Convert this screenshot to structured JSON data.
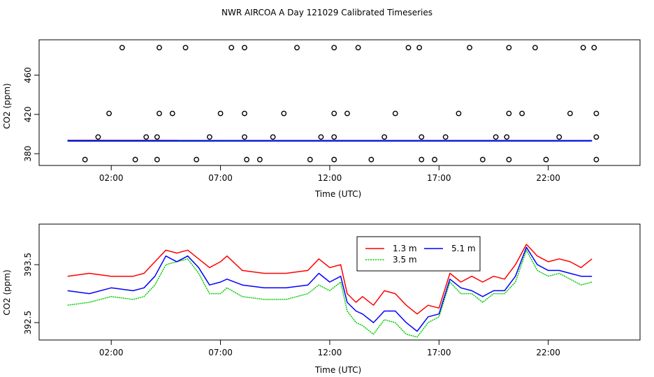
{
  "chart_data": [
    {
      "type": "scatter",
      "title": "NWR AIRCOA A  Day 121029  Calibrated Timeseries",
      "xlabel": "Time (UTC)",
      "ylabel": "CO2 (ppm)",
      "xlim": [
        -1.3,
        26.2
      ],
      "ylim": [
        368,
        496
      ],
      "xticks": [
        2,
        7,
        12,
        17,
        22
      ],
      "xtick_labels": [
        "02:00",
        "07:00",
        "12:00",
        "17:00",
        "22:00"
      ],
      "yticks": [
        380,
        420,
        460
      ],
      "ytick_labels": [
        "380",
        "420",
        "460"
      ],
      "points": [
        {
          "x": 0.8,
          "y": 374
        },
        {
          "x": 1.4,
          "y": 397
        },
        {
          "x": 1.9,
          "y": 421
        },
        {
          "x": 2.5,
          "y": 488
        },
        {
          "x": 3.1,
          "y": 374
        },
        {
          "x": 3.6,
          "y": 397
        },
        {
          "x": 4.1,
          "y": 397
        },
        {
          "x": 4.1,
          "y": 374
        },
        {
          "x": 4.2,
          "y": 421
        },
        {
          "x": 4.2,
          "y": 488
        },
        {
          "x": 4.8,
          "y": 421
        },
        {
          "x": 5.4,
          "y": 488
        },
        {
          "x": 5.9,
          "y": 374
        },
        {
          "x": 6.5,
          "y": 397
        },
        {
          "x": 7.0,
          "y": 421
        },
        {
          "x": 7.5,
          "y": 488
        },
        {
          "x": 8.1,
          "y": 488
        },
        {
          "x": 8.1,
          "y": 421
        },
        {
          "x": 8.1,
          "y": 397
        },
        {
          "x": 8.2,
          "y": 374
        },
        {
          "x": 8.8,
          "y": 374
        },
        {
          "x": 9.4,
          "y": 397
        },
        {
          "x": 9.9,
          "y": 421
        },
        {
          "x": 10.5,
          "y": 488
        },
        {
          "x": 11.1,
          "y": 374
        },
        {
          "x": 11.6,
          "y": 397
        },
        {
          "x": 12.2,
          "y": 397
        },
        {
          "x": 12.2,
          "y": 374
        },
        {
          "x": 12.2,
          "y": 421
        },
        {
          "x": 12.2,
          "y": 488
        },
        {
          "x": 12.8,
          "y": 421
        },
        {
          "x": 13.3,
          "y": 488
        },
        {
          "x": 13.9,
          "y": 374
        },
        {
          "x": 14.5,
          "y": 397
        },
        {
          "x": 15.0,
          "y": 421
        },
        {
          "x": 15.6,
          "y": 488
        },
        {
          "x": 16.1,
          "y": 488
        },
        {
          "x": 16.2,
          "y": 397
        },
        {
          "x": 16.2,
          "y": 374
        },
        {
          "x": 16.8,
          "y": 374
        },
        {
          "x": 17.3,
          "y": 397
        },
        {
          "x": 17.9,
          "y": 421
        },
        {
          "x": 18.4,
          "y": 488
        },
        {
          "x": 19.0,
          "y": 374
        },
        {
          "x": 19.6,
          "y": 397
        },
        {
          "x": 20.1,
          "y": 397
        },
        {
          "x": 20.2,
          "y": 374
        },
        {
          "x": 20.2,
          "y": 421
        },
        {
          "x": 20.2,
          "y": 488
        },
        {
          "x": 20.8,
          "y": 421
        },
        {
          "x": 21.4,
          "y": 488
        },
        {
          "x": 21.9,
          "y": 374
        },
        {
          "x": 22.5,
          "y": 397
        },
        {
          "x": 23.0,
          "y": 421
        },
        {
          "x": 23.6,
          "y": 488
        },
        {
          "x": 24.1,
          "y": 488
        },
        {
          "x": 24.2,
          "y": 421
        },
        {
          "x": 24.2,
          "y": 397
        },
        {
          "x": 24.2,
          "y": 374
        }
      ],
      "series": [
        {
          "name": "1.3 m",
          "color": "#ff0000",
          "x": [
            0,
            24
          ],
          "values": [
            393.4,
            393.3
          ]
        },
        {
          "name": "3.5 m",
          "color": "#00cc00",
          "x": [
            0,
            24
          ],
          "values": [
            392.9,
            393.0
          ]
        },
        {
          "name": "5.1 m",
          "color": "#0000ff",
          "x": [
            0,
            24
          ],
          "values": [
            393.2,
            393.2
          ]
        }
      ]
    },
    {
      "type": "line",
      "xlabel": "Time (UTC)",
      "ylabel": "CO2 (ppm)",
      "xlim": [
        -1.3,
        26.2
      ],
      "ylim": [
        392.2,
        394.2
      ],
      "xticks": [
        2,
        7,
        12,
        17,
        22
      ],
      "xtick_labels": [
        "02:00",
        "07:00",
        "12:00",
        "17:00",
        "22:00"
      ],
      "yticks": [
        392.5,
        393.5
      ],
      "ytick_labels": [
        "392.5",
        "393.5"
      ],
      "legend": {
        "position": "top-center",
        "entries": [
          "1.3 m",
          "5.1 m",
          "3.5 m"
        ]
      },
      "series": [
        {
          "name": "1.3 m",
          "color": "#ff0000",
          "x": [
            0,
            1,
            2,
            3,
            3.5,
            4,
            4.5,
            5,
            5.5,
            6,
            6.5,
            7,
            7.3,
            8,
            9,
            10,
            11,
            11.5,
            12,
            12.5,
            12.8,
            13.2,
            13.5,
            14,
            14.5,
            15,
            15.5,
            16,
            16.5,
            17,
            17.5,
            18,
            18.5,
            19,
            19.5,
            20,
            20.5,
            21,
            21.5,
            22,
            22.5,
            23,
            23.5,
            24
          ],
          "values": [
            393.3,
            393.35,
            393.3,
            393.3,
            393.35,
            393.55,
            393.75,
            393.7,
            393.75,
            393.6,
            393.45,
            393.55,
            393.65,
            393.4,
            393.35,
            393.35,
            393.4,
            393.6,
            393.45,
            393.5,
            393.0,
            392.85,
            392.95,
            392.8,
            393.05,
            393.0,
            392.8,
            392.65,
            392.8,
            392.75,
            393.35,
            393.2,
            393.3,
            393.2,
            393.3,
            393.25,
            393.5,
            393.85,
            393.65,
            393.55,
            393.6,
            393.55,
            393.45,
            393.6
          ]
        },
        {
          "name": "3.5 m",
          "color": "#00cc00",
          "x": [
            0,
            1,
            2,
            3,
            3.5,
            4,
            4.5,
            5,
            5.5,
            6,
            6.5,
            7,
            7.3,
            8,
            9,
            10,
            11,
            11.5,
            12,
            12.5,
            12.8,
            13.2,
            13.5,
            14,
            14.5,
            15,
            15.5,
            16,
            16.5,
            17,
            17.5,
            18,
            18.5,
            19,
            19.5,
            20,
            20.5,
            21,
            21.5,
            22,
            22.5,
            23,
            23.5,
            24
          ],
          "values": [
            392.8,
            392.85,
            392.95,
            392.9,
            392.95,
            393.15,
            393.5,
            393.55,
            393.6,
            393.35,
            393.0,
            393.0,
            393.1,
            392.95,
            392.9,
            392.9,
            393.0,
            393.15,
            393.05,
            393.2,
            392.7,
            392.5,
            392.45,
            392.3,
            392.55,
            392.5,
            392.3,
            392.25,
            392.5,
            392.6,
            393.2,
            393.0,
            393.0,
            392.85,
            393.0,
            393.0,
            393.2,
            393.75,
            393.4,
            393.3,
            393.35,
            393.25,
            393.15,
            393.2
          ]
        },
        {
          "name": "5.1 m",
          "color": "#0000ff",
          "x": [
            0,
            1,
            2,
            3,
            3.5,
            4,
            4.5,
            5,
            5.5,
            6,
            6.5,
            7,
            7.3,
            8,
            9,
            10,
            11,
            11.5,
            12,
            12.5,
            12.8,
            13.2,
            13.5,
            14,
            14.5,
            15,
            15.5,
            16,
            16.5,
            17,
            17.5,
            18,
            18.5,
            19,
            19.5,
            20,
            20.5,
            21,
            21.5,
            22,
            22.5,
            23,
            23.5,
            24
          ],
          "values": [
            393.05,
            393.0,
            393.1,
            393.05,
            393.1,
            393.3,
            393.65,
            393.55,
            393.65,
            393.45,
            393.15,
            393.2,
            393.25,
            393.15,
            393.1,
            393.1,
            393.15,
            393.35,
            393.2,
            393.3,
            392.85,
            392.7,
            392.65,
            392.5,
            392.7,
            392.7,
            392.5,
            392.35,
            392.6,
            392.65,
            393.25,
            393.1,
            393.05,
            392.95,
            393.05,
            393.05,
            393.3,
            393.8,
            393.5,
            393.4,
            393.4,
            393.35,
            393.3,
            393.3
          ]
        }
      ]
    }
  ]
}
